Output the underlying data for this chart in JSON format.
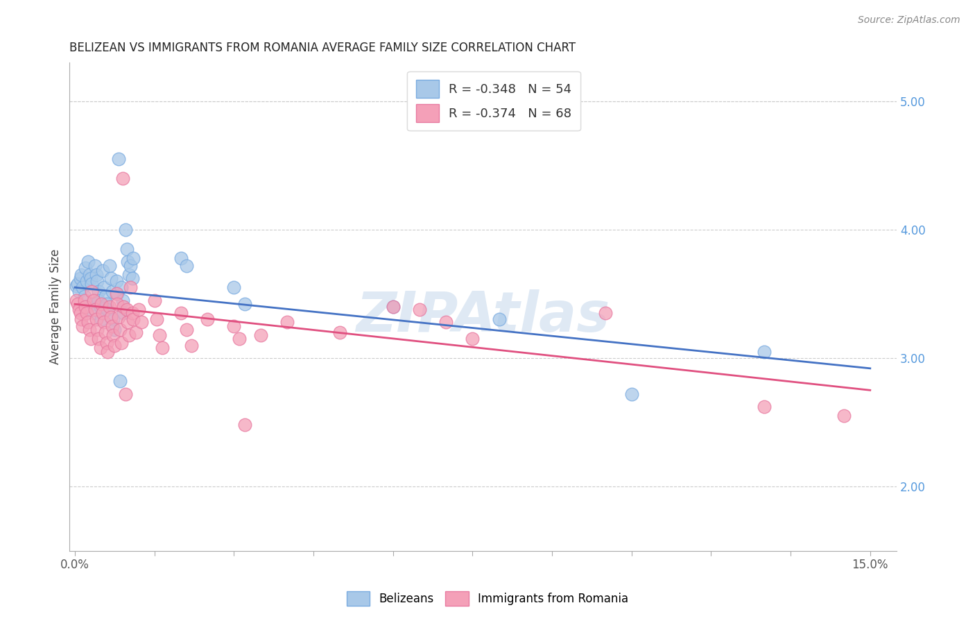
{
  "title": "BELIZEAN VS IMMIGRANTS FROM ROMANIA AVERAGE FAMILY SIZE CORRELATION CHART",
  "source": "Source: ZipAtlas.com",
  "ylabel": "Average Family Size",
  "right_yticks": [
    2.0,
    3.0,
    4.0,
    5.0
  ],
  "legend_blue_label": "R = -0.348   N = 54",
  "legend_pink_label": "R = -0.374   N = 68",
  "legend_bottom_blue": "Belizeans",
  "legend_bottom_pink": "Immigrants from Romania",
  "blue_fill": "#a8c8e8",
  "pink_fill": "#f4a0b8",
  "blue_edge": "#7aabe0",
  "pink_edge": "#e87aa0",
  "blue_line_color": "#4472c4",
  "pink_line_color": "#e05080",
  "watermark": "ZIPAtlas",
  "blue_scatter": [
    [
      0.0002,
      3.56
    ],
    [
      0.0005,
      3.58
    ],
    [
      0.0008,
      3.52
    ],
    [
      0.001,
      3.62
    ],
    [
      0.0012,
      3.65
    ],
    [
      0.0015,
      3.55
    ],
    [
      0.0018,
      3.48
    ],
    [
      0.002,
      3.7
    ],
    [
      0.0022,
      3.6
    ],
    [
      0.0025,
      3.75
    ],
    [
      0.0028,
      3.65
    ],
    [
      0.003,
      3.62
    ],
    [
      0.0032,
      3.58
    ],
    [
      0.0033,
      3.42
    ],
    [
      0.0035,
      3.35
    ],
    [
      0.0038,
      3.72
    ],
    [
      0.004,
      3.65
    ],
    [
      0.0042,
      3.6
    ],
    [
      0.0044,
      3.52
    ],
    [
      0.0045,
      3.45
    ],
    [
      0.0048,
      3.4
    ],
    [
      0.005,
      3.3
    ],
    [
      0.0052,
      3.68
    ],
    [
      0.0055,
      3.55
    ],
    [
      0.0058,
      3.48
    ],
    [
      0.006,
      3.42
    ],
    [
      0.0062,
      3.38
    ],
    [
      0.0065,
      3.72
    ],
    [
      0.0068,
      3.62
    ],
    [
      0.007,
      3.52
    ],
    [
      0.0072,
      3.3
    ],
    [
      0.0075,
      3.22
    ],
    [
      0.0078,
      3.6
    ],
    [
      0.008,
      3.5
    ],
    [
      0.0082,
      4.55
    ],
    [
      0.0085,
      2.82
    ],
    [
      0.0088,
      3.55
    ],
    [
      0.009,
      3.45
    ],
    [
      0.0092,
      3.35
    ],
    [
      0.0095,
      4.0
    ],
    [
      0.0098,
      3.85
    ],
    [
      0.01,
      3.75
    ],
    [
      0.0102,
      3.65
    ],
    [
      0.0105,
      3.72
    ],
    [
      0.0108,
      3.62
    ],
    [
      0.011,
      3.78
    ],
    [
      0.02,
      3.78
    ],
    [
      0.021,
      3.72
    ],
    [
      0.03,
      3.55
    ],
    [
      0.032,
      3.42
    ],
    [
      0.06,
      3.4
    ],
    [
      0.08,
      3.3
    ],
    [
      0.105,
      2.72
    ],
    [
      0.13,
      3.05
    ]
  ],
  "pink_scatter": [
    [
      0.0002,
      3.45
    ],
    [
      0.0005,
      3.42
    ],
    [
      0.0008,
      3.38
    ],
    [
      0.001,
      3.35
    ],
    [
      0.0012,
      3.3
    ],
    [
      0.0015,
      3.25
    ],
    [
      0.0018,
      3.45
    ],
    [
      0.002,
      3.4
    ],
    [
      0.0022,
      3.35
    ],
    [
      0.0025,
      3.28
    ],
    [
      0.0028,
      3.22
    ],
    [
      0.003,
      3.15
    ],
    [
      0.0032,
      3.52
    ],
    [
      0.0035,
      3.45
    ],
    [
      0.0038,
      3.38
    ],
    [
      0.004,
      3.3
    ],
    [
      0.0042,
      3.22
    ],
    [
      0.0045,
      3.15
    ],
    [
      0.0048,
      3.08
    ],
    [
      0.005,
      3.42
    ],
    [
      0.0052,
      3.35
    ],
    [
      0.0055,
      3.28
    ],
    [
      0.0058,
      3.2
    ],
    [
      0.006,
      3.12
    ],
    [
      0.0062,
      3.05
    ],
    [
      0.0065,
      3.4
    ],
    [
      0.0068,
      3.32
    ],
    [
      0.007,
      3.25
    ],
    [
      0.0072,
      3.18
    ],
    [
      0.0075,
      3.1
    ],
    [
      0.0078,
      3.5
    ],
    [
      0.008,
      3.42
    ],
    [
      0.0082,
      3.32
    ],
    [
      0.0085,
      3.22
    ],
    [
      0.0088,
      3.12
    ],
    [
      0.009,
      4.4
    ],
    [
      0.0092,
      3.4
    ],
    [
      0.0095,
      2.72
    ],
    [
      0.0098,
      3.38
    ],
    [
      0.01,
      3.28
    ],
    [
      0.0102,
      3.18
    ],
    [
      0.0105,
      3.55
    ],
    [
      0.0108,
      3.35
    ],
    [
      0.011,
      3.3
    ],
    [
      0.0115,
      3.2
    ],
    [
      0.012,
      3.38
    ],
    [
      0.0125,
      3.28
    ],
    [
      0.015,
      3.45
    ],
    [
      0.0155,
      3.3
    ],
    [
      0.016,
      3.18
    ],
    [
      0.0165,
      3.08
    ],
    [
      0.02,
      3.35
    ],
    [
      0.021,
      3.22
    ],
    [
      0.022,
      3.1
    ],
    [
      0.025,
      3.3
    ],
    [
      0.03,
      3.25
    ],
    [
      0.031,
      3.15
    ],
    [
      0.032,
      2.48
    ],
    [
      0.035,
      3.18
    ],
    [
      0.04,
      3.28
    ],
    [
      0.05,
      3.2
    ],
    [
      0.06,
      3.4
    ],
    [
      0.065,
      3.38
    ],
    [
      0.07,
      3.28
    ],
    [
      0.075,
      3.15
    ],
    [
      0.1,
      3.35
    ],
    [
      0.13,
      2.62
    ],
    [
      0.145,
      2.55
    ]
  ],
  "blue_line_x": [
    0.0,
    0.15
  ],
  "blue_line_y": [
    3.55,
    2.92
  ],
  "pink_line_x": [
    0.0,
    0.15
  ],
  "pink_line_y": [
    3.42,
    2.75
  ],
  "xlim": [
    -0.001,
    0.155
  ],
  "ylim": [
    1.5,
    5.3
  ],
  "xtick_positions": [
    0.0,
    0.015,
    0.03,
    0.045,
    0.06,
    0.075,
    0.09,
    0.105,
    0.12,
    0.135,
    0.15
  ],
  "xtick_show_label": [
    true,
    false,
    false,
    false,
    false,
    false,
    false,
    false,
    false,
    false,
    true
  ]
}
